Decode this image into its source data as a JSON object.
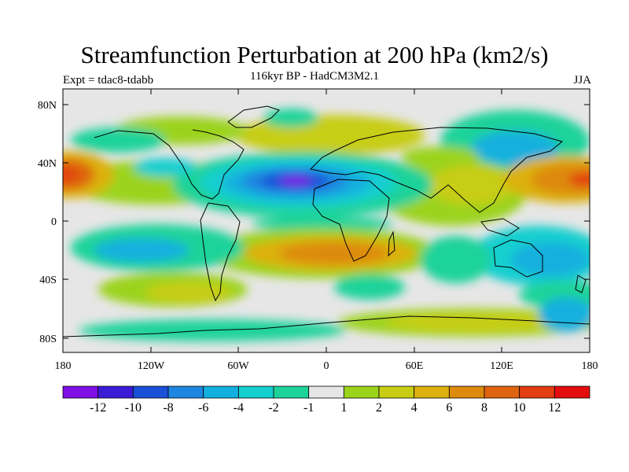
{
  "map": {
    "title": "Streamfunction Perturbation at 200 hPa (km2/s)",
    "subtitle": "116kyr BP - HadCM3M2.1",
    "left_label": "Expt = tdac8-tdabb",
    "right_label": "JJA",
    "lat_ticks": [
      "80N",
      "40N",
      "0",
      "40S",
      "80S"
    ],
    "lon_ticks": [
      "180",
      "120W",
      "60W",
      "0",
      "60E",
      "120E",
      "180"
    ],
    "legend": {
      "colors": [
        "#7e10e6",
        "#3b1bd6",
        "#1a4fd8",
        "#1e86e0",
        "#12b0de",
        "#14cfcf",
        "#1ed39a",
        "#e6e6e6",
        "#9bd31a",
        "#c8cd14",
        "#dcb10e",
        "#dd8a0c",
        "#df640f",
        "#e33d10",
        "#e30d0d"
      ],
      "labels": [
        "-12",
        "-10",
        "-8",
        "-6",
        "-4",
        "-2",
        "-1",
        "1",
        "2",
        "4",
        "6",
        "8",
        "10",
        "12"
      ]
    }
  }
}
